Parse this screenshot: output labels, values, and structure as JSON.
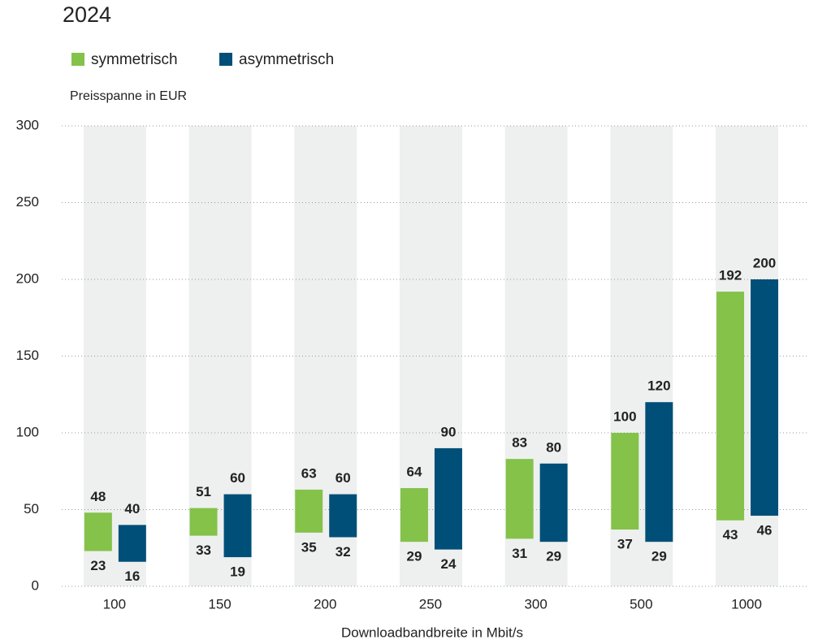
{
  "chart_data": {
    "type": "range-bar",
    "title": "2024",
    "subtitle": "Preisspanne in EUR",
    "x_label": "Downloadbandbreite in Mbit/s",
    "categories": [
      "100",
      "150",
      "200",
      "250",
      "300",
      "500",
      "1000"
    ],
    "series": [
      {
        "name": "symmetrisch",
        "color": "#84c24a",
        "low": [
          23,
          33,
          35,
          29,
          31,
          37,
          43
        ],
        "high": [
          48,
          51,
          63,
          64,
          83,
          100,
          192
        ]
      },
      {
        "name": "asymmetrisch",
        "color": "#004f78",
        "low": [
          16,
          19,
          32,
          24,
          29,
          29,
          46
        ],
        "high": [
          40,
          60,
          60,
          90,
          80,
          120,
          200
        ]
      }
    ],
    "ylim": [
      0,
      300
    ],
    "yticks": [
      0,
      50,
      100,
      150,
      200,
      250,
      300
    ],
    "grid": true
  }
}
